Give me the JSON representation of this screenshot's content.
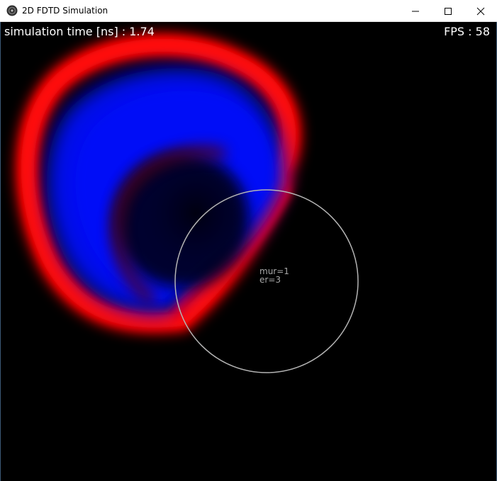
{
  "window": {
    "title": "2D FDTD Simulation",
    "icon": "app-icon"
  },
  "hud": {
    "time_label": "simulation time [ns]",
    "time_sep": " : ",
    "time_value": "1.74",
    "fps_label": "FPS",
    "fps_sep": " : ",
    "fps_value": "58"
  },
  "material": {
    "mur_line": "mur=1",
    "er_line": "er=3"
  },
  "colors": {
    "positive_field": "#ff0000",
    "negative_field": "#0000ff",
    "background": "#000000",
    "material_outline": "#b4b4b4",
    "hud_text": "#ffffff",
    "label_text": "#a8a8a8"
  }
}
